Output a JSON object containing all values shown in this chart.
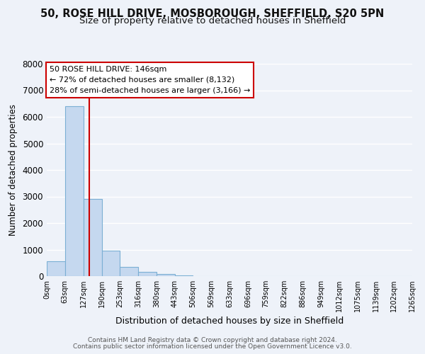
{
  "title_line1": "50, ROSE HILL DRIVE, MOSBOROUGH, SHEFFIELD, S20 5PN",
  "title_line2": "Size of property relative to detached houses in Sheffield",
  "xlabel": "Distribution of detached houses by size in Sheffield",
  "ylabel": "Number of detached properties",
  "bar_edges": [
    0,
    63,
    127,
    190,
    253,
    316,
    380,
    443,
    506,
    569,
    633,
    696,
    759,
    822,
    886,
    949,
    1012,
    1075,
    1139,
    1202,
    1265
  ],
  "bar_heights": [
    560,
    6400,
    2920,
    970,
    350,
    170,
    80,
    35,
    5,
    0,
    0,
    0,
    0,
    0,
    0,
    0,
    0,
    0,
    0,
    0
  ],
  "bar_color": "#c5d8ef",
  "bar_edgecolor": "#7bafd4",
  "property_size": 146,
  "vline_color": "#cc0000",
  "ylim": [
    0,
    8000
  ],
  "yticks": [
    0,
    1000,
    2000,
    3000,
    4000,
    5000,
    6000,
    7000,
    8000
  ],
  "annotation_title": "50 ROSE HILL DRIVE: 146sqm",
  "annotation_line1": "← 72% of detached houses are smaller (8,132)",
  "annotation_line2": "28% of semi-detached houses are larger (3,166) →",
  "annotation_box_facecolor": "#ffffff",
  "annotation_box_edgecolor": "#cc0000",
  "footer_line1": "Contains HM Land Registry data © Crown copyright and database right 2024.",
  "footer_line2": "Contains public sector information licensed under the Open Government Licence v3.0.",
  "background_color": "#eef2f9",
  "grid_color": "#ffffff",
  "title_fontsize": 10.5,
  "subtitle_fontsize": 9.5,
  "tick_labels": [
    "0sqm",
    "63sqm",
    "127sqm",
    "190sqm",
    "253sqm",
    "316sqm",
    "380sqm",
    "443sqm",
    "506sqm",
    "569sqm",
    "633sqm",
    "696sqm",
    "759sqm",
    "822sqm",
    "886sqm",
    "949sqm",
    "1012sqm",
    "1075sqm",
    "1139sqm",
    "1202sqm",
    "1265sqm"
  ]
}
